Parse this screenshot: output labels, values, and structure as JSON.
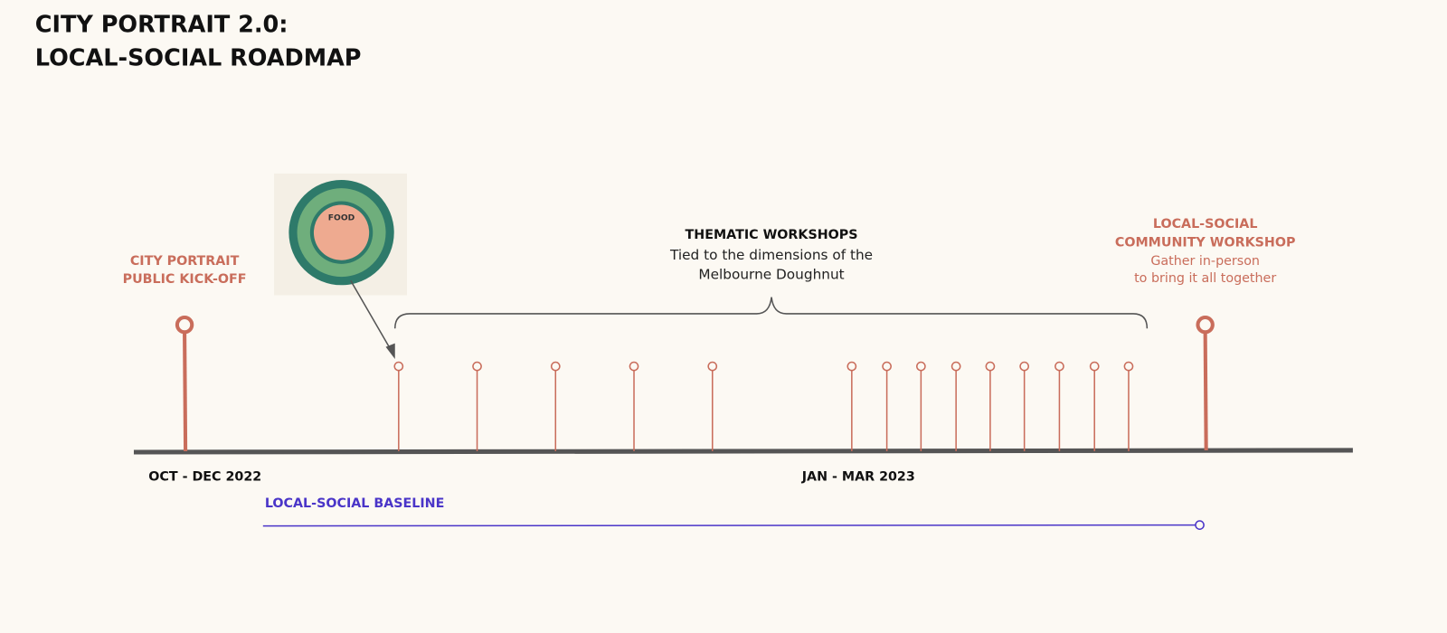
{
  "header": {
    "title": [
      "CITY PORTRAIT 2.0:",
      "LOCAL-SOCIAL ROADMAP"
    ]
  },
  "kickoff": {
    "label": [
      "CITY PORTRAIT",
      "PUBLIC KICK-OFF"
    ]
  },
  "thematic": {
    "heading": "THEMATIC WORKSHOPS",
    "description": [
      "Tied to the dimensions of the",
      "Melbourne Doughnut"
    ],
    "badge": "FOOD"
  },
  "community": {
    "heading": [
      "LOCAL-SOCIAL",
      "COMMUNITY WORKSHOP"
    ],
    "description": [
      "Gather in-person",
      "to bring it all together"
    ]
  },
  "periods": [
    "OCT - DEC 2022",
    "JAN - MAR 2023"
  ],
  "baseline": {
    "label": "LOCAL-SOCIAL BASELINE"
  }
}
